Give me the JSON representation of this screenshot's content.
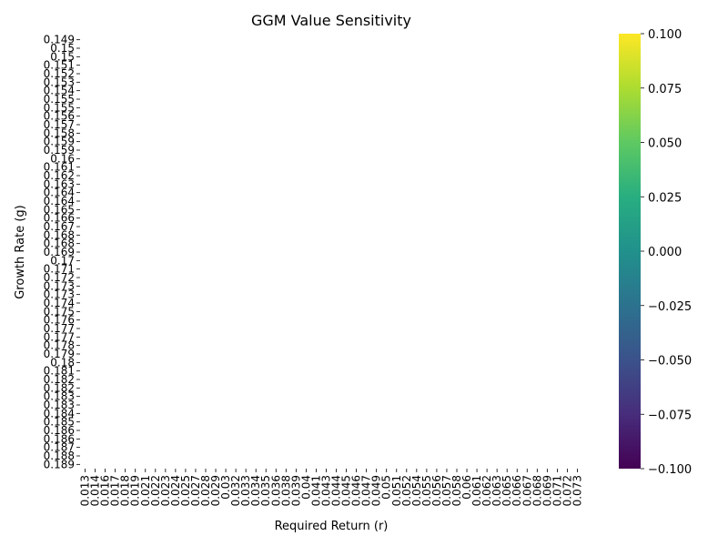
{
  "chart_data": {
    "type": "heatmap",
    "title": "GGM Value Sensitivity",
    "xlabel": "Required Return (r)",
    "ylabel": "Growth Rate (g)",
    "x_tick_labels": [
      "0.013",
      "0.014",
      "0.016",
      "0.017",
      "0.018",
      "0.019",
      "0.021",
      "0.022",
      "0.023",
      "0.024",
      "0.025",
      "0.027",
      "0.028",
      "0.029",
      "0.03",
      "0.032",
      "0.033",
      "0.034",
      "0.035",
      "0.036",
      "0.038",
      "0.039",
      "0.04",
      "0.041",
      "0.043",
      "0.044",
      "0.045",
      "0.046",
      "0.047",
      "0.049",
      "0.05",
      "0.051",
      "0.052",
      "0.054",
      "0.055",
      "0.056",
      "0.057",
      "0.058",
      "0.06",
      "0.061",
      "0.062",
      "0.063",
      "0.065",
      "0.066",
      "0.067",
      "0.068",
      "0.069",
      "0.071",
      "0.072",
      "0.073"
    ],
    "y_tick_labels": [
      "0.149",
      "0.15",
      "0.15",
      "0.151",
      "0.152",
      "0.153",
      "0.154",
      "0.155",
      "0.155",
      "0.156",
      "0.157",
      "0.158",
      "0.159",
      "0.159",
      "0.16",
      "0.161",
      "0.162",
      "0.163",
      "0.164",
      "0.164",
      "0.165",
      "0.166",
      "0.167",
      "0.168",
      "0.168",
      "0.169",
      "0.17",
      "0.171",
      "0.172",
      "0.173",
      "0.173",
      "0.174",
      "0.175",
      "0.176",
      "0.177",
      "0.177",
      "0.178",
      "0.179",
      "0.18",
      "0.181",
      "0.182",
      "0.182",
      "0.183",
      "0.183",
      "0.184",
      "0.185",
      "0.186",
      "0.186",
      "0.187",
      "0.188",
      "0.189"
    ],
    "values": "all cells empty (NaN)",
    "colorbar": {
      "colormap": "viridis",
      "range": [
        -0.1,
        0.1
      ],
      "tick_labels": [
        "0.100",
        "0.075",
        "0.050",
        "0.025",
        "0.000",
        "−0.025",
        "−0.050",
        "−0.075",
        "−0.100"
      ]
    },
    "grid": false
  }
}
